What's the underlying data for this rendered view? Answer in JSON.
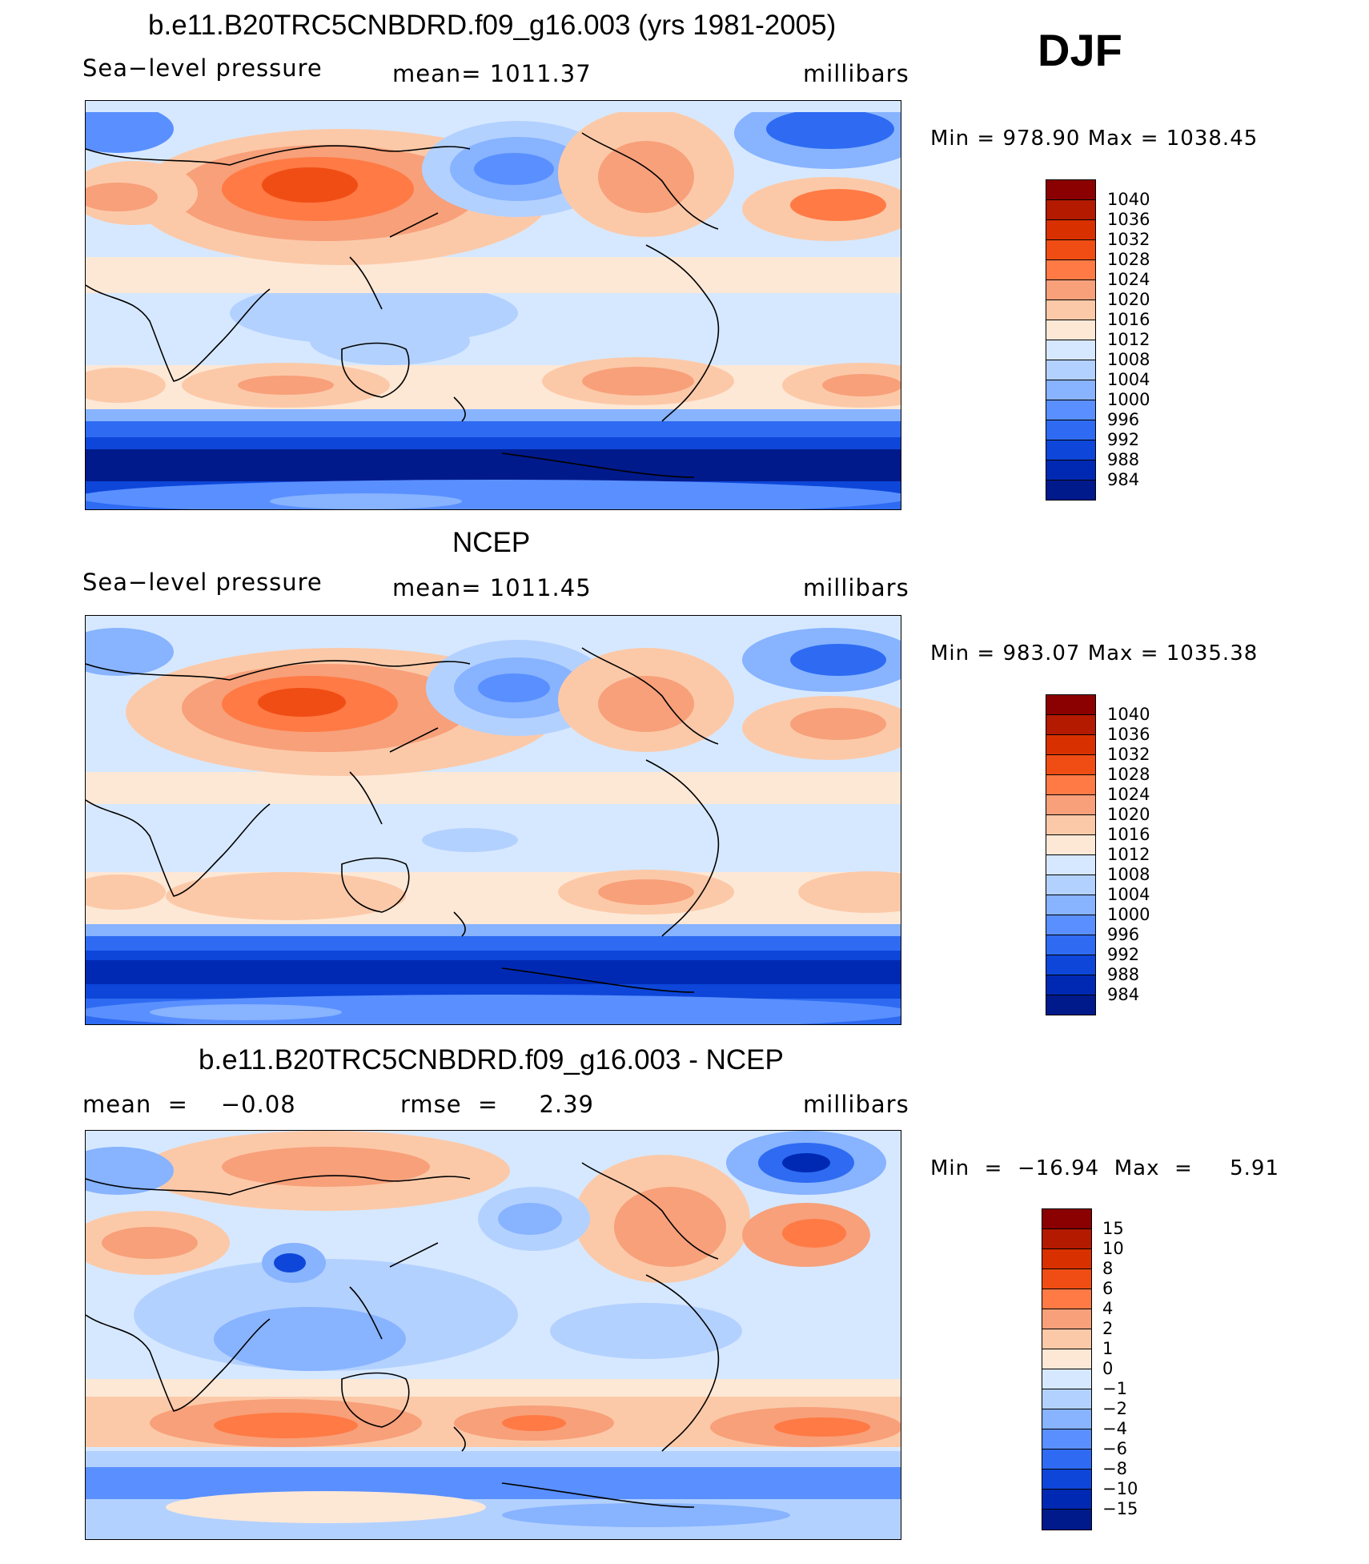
{
  "season": "DJF",
  "panels": [
    {
      "title": "b.e11.B20TRC5CNBDRD.f09_g16.003 (yrs 1981-2005)",
      "left_label": "Sea−level pressure",
      "center_label": "mean=  1011.37",
      "right_label": "millibars",
      "minmax": "Min  =  978.90  Max  =  1038.45",
      "colorbar_labels": [
        "1040",
        "1036",
        "1032",
        "1028",
        "1024",
        "1020",
        "1016",
        "1012",
        "1008",
        "1004",
        "1000",
        "996",
        "992",
        "988",
        "984"
      ]
    },
    {
      "title": "NCEP",
      "left_label": "Sea−level pressure",
      "center_label": "mean=  1011.45",
      "right_label": "millibars",
      "minmax": "Min  =  983.07  Max  =  1035.38",
      "colorbar_labels": [
        "1040",
        "1036",
        "1032",
        "1028",
        "1024",
        "1020",
        "1016",
        "1012",
        "1008",
        "1004",
        "1000",
        "996",
        "992",
        "988",
        "984"
      ]
    },
    {
      "title": "b.e11.B20TRC5CNBDRD.f09_g16.003 - NCEP",
      "left_label": "mean  =    −0.08",
      "center_label": "rmse  =     2.39",
      "right_label": "millibars",
      "minmax": "Min  =  −16.94  Max  =     5.91",
      "colorbar_labels": [
        "15",
        "10",
        "8",
        "6",
        "4",
        "2",
        "1",
        "0",
        "−1",
        "−2",
        "−4",
        "−6",
        "−8",
        "−10",
        "−15"
      ]
    }
  ],
  "colors": {
    "palette": [
      "#8b0000",
      "#b31a00",
      "#d93000",
      "#f04d14",
      "#ff7a45",
      "#f7a07a",
      "#fcc9a8",
      "#fde8d6",
      "#d6e8ff",
      "#b3d1ff",
      "#87b3ff",
      "#5a8fff",
      "#2e6bf2",
      "#0d46d9",
      "#0029b3",
      "#001a8c"
    ]
  }
}
